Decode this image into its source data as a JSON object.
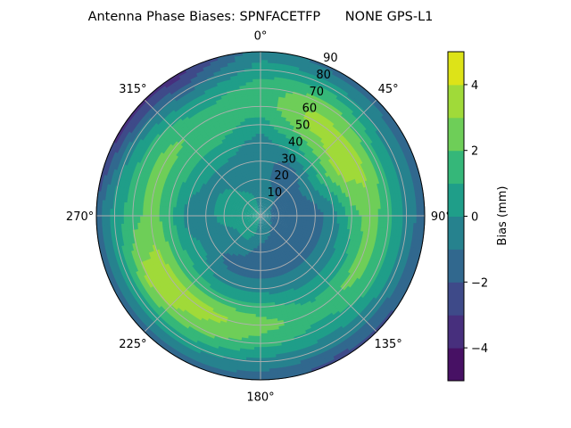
{
  "chart_data": {
    "type": "heatmap",
    "subtype": "polar-contour",
    "title": "Antenna Phase Biases: SPNFACETFP      NONE GPS-L1",
    "theta_direction": "clockwise",
    "theta_zero": "north",
    "theta_tick_labels": [
      "0°",
      "45°",
      "90°",
      "135°",
      "180°",
      "225°",
      "270°",
      "315°"
    ],
    "theta_ticks": [
      0,
      45,
      90,
      135,
      180,
      225,
      270,
      315
    ],
    "r_tick_labels": [
      "10",
      "20",
      "30",
      "40",
      "50",
      "60",
      "70",
      "80",
      "90"
    ],
    "r_ticks": [
      10,
      20,
      30,
      40,
      50,
      60,
      70,
      80,
      90
    ],
    "rlim": [
      0,
      90
    ],
    "grid": true,
    "colorbar": {
      "label": "Bias (mm)",
      "range": [
        -5,
        5
      ],
      "levels": [
        -5,
        -4,
        -3,
        -2,
        -1,
        0,
        1,
        2,
        3,
        4,
        5
      ],
      "tick_values": [
        -4,
        -2,
        0,
        2,
        4
      ],
      "tick_labels": [
        "−4",
        "−2",
        "0",
        "2",
        "4"
      ],
      "colormap": "viridis",
      "colors": [
        "#471164",
        "#472f7d",
        "#3e4a89",
        "#31688e",
        "#26828e",
        "#1f9e89",
        "#35b779",
        "#6ece58",
        "#a0da39",
        "#dde318"
      ]
    },
    "azimuths": [
      0,
      30,
      60,
      90,
      120,
      150,
      180,
      210,
      240,
      270,
      300,
      330
    ],
    "radii": [
      0,
      10,
      20,
      30,
      40,
      50,
      60,
      70,
      80,
      90
    ],
    "values": [
      [
        0,
        -0.5,
        -0.5,
        -0.5,
        -0.5,
        0.5,
        1.5,
        1.5,
        0.5,
        -0.5
      ],
      [
        0,
        -0.5,
        -1.5,
        -1.5,
        0.5,
        2.5,
        3.5,
        2.5,
        0.5,
        -1.5
      ],
      [
        0,
        -1.5,
        -1.5,
        -0.5,
        1.5,
        3.5,
        3.5,
        1.5,
        -0.5,
        -1.5
      ],
      [
        0,
        -1.5,
        -1.5,
        -1.5,
        -0.5,
        1.5,
        2.5,
        1.5,
        -0.5,
        -1.5
      ],
      [
        0,
        -1.5,
        -1.5,
        -1.5,
        -0.5,
        0.5,
        2.5,
        1.5,
        -0.5,
        -2
      ],
      [
        0,
        -1,
        -1.5,
        -1.5,
        -0.5,
        0.5,
        1.5,
        0.5,
        -0.5,
        -2.5
      ],
      [
        0,
        -0.5,
        -1.5,
        -1.5,
        -0.5,
        1.5,
        2.5,
        1.5,
        -0.5,
        -1.5
      ],
      [
        0,
        0.5,
        -0.5,
        -1.5,
        -0.5,
        1.5,
        3.5,
        2.5,
        0.5,
        -1.5
      ],
      [
        0,
        0.5,
        -0.5,
        -0.5,
        0.5,
        1.5,
        3.5,
        3.5,
        0.5,
        -1.5
      ],
      [
        0,
        0.5,
        0.5,
        -0.5,
        -0.5,
        1.5,
        2.5,
        1.5,
        0.5,
        -1.5
      ],
      [
        0,
        0.5,
        0.5,
        -0.5,
        0.5,
        1.5,
        2.5,
        1.5,
        -0.5,
        -3.5
      ],
      [
        0,
        0.5,
        -0.5,
        -0.5,
        0.5,
        1.5,
        1.5,
        0.5,
        -1.5,
        -3.5
      ]
    ]
  }
}
